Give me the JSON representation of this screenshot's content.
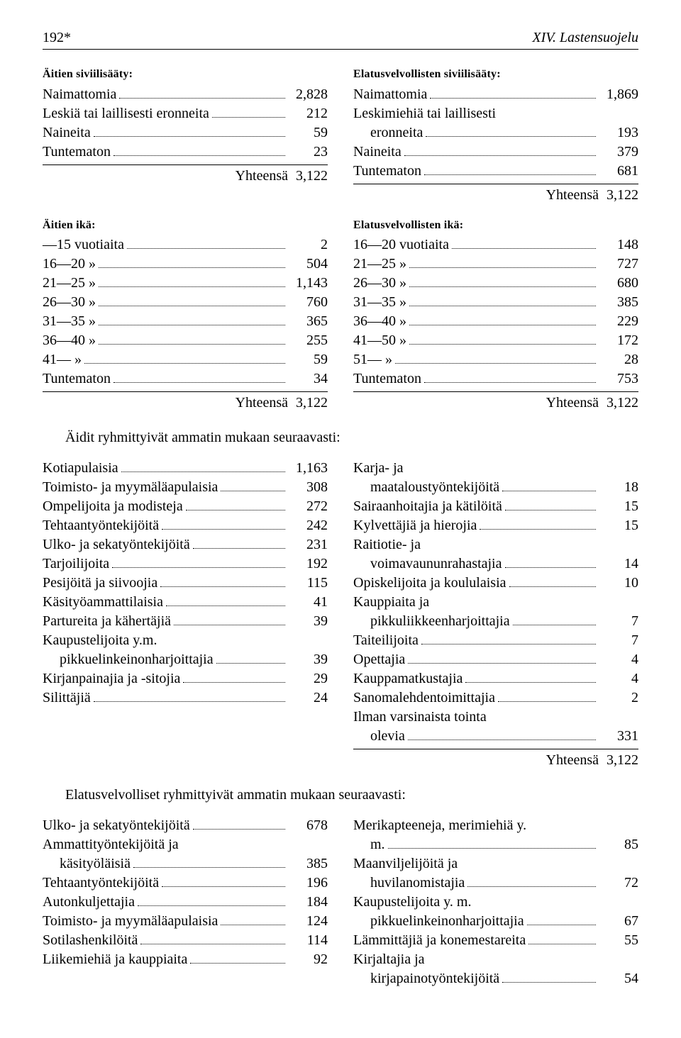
{
  "header": {
    "pnum": "192*",
    "title": "XIV. Lastensuojelu"
  },
  "totals_word": "Yhteensä",
  "s1": {
    "left": {
      "head": "Äitien siviilisääty:",
      "items": [
        {
          "l": "Naimattomia",
          "v": "2,828"
        },
        {
          "l": "Leskiä tai laillisesti eronneita",
          "v": "212"
        },
        {
          "l": "Naineita",
          "v": "59"
        },
        {
          "l": "Tuntematon",
          "v": "23"
        }
      ],
      "total": "3,122"
    },
    "right": {
      "head": "Elatusvelvollisten siviilisääty:",
      "items": [
        {
          "l": "Naimattomia",
          "v": "1,869"
        },
        {
          "l": "Leskimiehiä tai laillisesti eronneita",
          "v": "193"
        },
        {
          "l": "Naineita",
          "v": "379"
        },
        {
          "l": "Tuntematon",
          "v": "681"
        }
      ],
      "total": "3,122"
    }
  },
  "s2": {
    "left": {
      "head": "Äitien ikä:",
      "items": [
        {
          "l": "—15 vuotiaita",
          "v": "2"
        },
        {
          "l": "16—20    »",
          "v": "504"
        },
        {
          "l": "21—25    »",
          "v": "1,143"
        },
        {
          "l": "26—30    »",
          "v": "760"
        },
        {
          "l": "31—35    »",
          "v": "365"
        },
        {
          "l": "36—40    »",
          "v": "255"
        },
        {
          "l": "41—       »",
          "v": "59"
        },
        {
          "l": "Tuntematon",
          "v": "34"
        }
      ],
      "total": "3,122"
    },
    "right": {
      "head": "Elatusvelvollisten ikä:",
      "items": [
        {
          "l": "16—20 vuotiaita",
          "v": "148"
        },
        {
          "l": "21—25    »",
          "v": "727"
        },
        {
          "l": "26—30    »",
          "v": "680"
        },
        {
          "l": "31—35    »",
          "v": "385"
        },
        {
          "l": "36—40    »",
          "v": "229"
        },
        {
          "l": "41—50    »",
          "v": "172"
        },
        {
          "l": "51—       »",
          "v": "28"
        },
        {
          "l": "Tuntematon",
          "v": "753"
        }
      ],
      "total": "3,122"
    }
  },
  "para1": "Äidit ryhmittyivät ammatin mukaan seuraavasti:",
  "s3": {
    "left": [
      {
        "l": "Kotiapulaisia",
        "v": "1,163"
      },
      {
        "l": "Toimisto- ja myymäläapulaisia",
        "v": "308"
      },
      {
        "l": "Ompelijoita ja modisteja",
        "v": "272"
      },
      {
        "l": "Tehtaantyöntekijöitä",
        "v": "242"
      },
      {
        "l": "Ulko- ja sekatyöntekijöitä",
        "v": "231"
      },
      {
        "l": "Tarjoilijoita",
        "v": "192"
      },
      {
        "l": "Pesijöitä ja siivoojia",
        "v": "115"
      },
      {
        "l": "Käsityöammattilaisia",
        "v": "41"
      },
      {
        "l": "Partureita ja kähertäjiä",
        "v": "39"
      },
      {
        "l": "Kaupustelijoita y.m. pikkuelinkeinonharjoittajia",
        "v": "39"
      },
      {
        "l": "Kirjanpainajia ja -sitojia",
        "v": "29"
      },
      {
        "l": "Silittäjiä",
        "v": "24"
      }
    ],
    "right": [
      {
        "l": "Karja- ja maataloustyöntekijöitä",
        "v": "18"
      },
      {
        "l": "Sairaanhoitajia ja kätilöitä",
        "v": "15"
      },
      {
        "l": "Kylvettäjiä ja hierojia",
        "v": "15"
      },
      {
        "l": "Raitiotie- ja voimavaununrahastajia",
        "v": "14"
      },
      {
        "l": "Opiskelijoita ja koululaisia",
        "v": "10"
      },
      {
        "l": "Kauppiaita ja pikkuliikkeenharjoittajia",
        "v": "7"
      },
      {
        "l": "Taiteilijoita",
        "v": "7"
      },
      {
        "l": "Opettajia",
        "v": "4"
      },
      {
        "l": "Kauppamatkustajia",
        "v": "4"
      },
      {
        "l": "Sanomalehdentoimittajia",
        "v": "2"
      },
      {
        "l": "Ilman varsinaista tointa olevia",
        "v": "331"
      }
    ],
    "total": "3,122"
  },
  "para2": "Elatusvelvolliset ryhmittyivät ammatin mukaan seuraavasti:",
  "s4": {
    "left": [
      {
        "l": "Ulko- ja sekatyöntekijöitä",
        "v": "678"
      },
      {
        "l": "Ammattityöntekijöitä ja käsityöläisiä",
        "v": "385"
      },
      {
        "l": "Tehtaantyöntekijöitä",
        "v": "196"
      },
      {
        "l": "Autonkuljettajia",
        "v": "184"
      },
      {
        "l": "Toimisto- ja myymäläapulaisia",
        "v": "124"
      },
      {
        "l": "Sotilashenkilöitä",
        "v": "114"
      },
      {
        "l": "Liikemiehiä ja kauppiaita",
        "v": "92"
      }
    ],
    "right": [
      {
        "l": "Merikapteeneja, merimiehiä y. m.",
        "v": "85"
      },
      {
        "l": "Maanviljelijöitä ja huvilanomistajia",
        "v": "72"
      },
      {
        "l": "Kaupustelijoita y. m. pikkuelinkeinonharjoittajia",
        "v": "67"
      },
      {
        "l": "Lämmittäjiä ja konemestareita",
        "v": "55"
      },
      {
        "l": "Kirjaltajia ja kirjapainotyöntekijöitä",
        "v": "54"
      }
    ]
  }
}
